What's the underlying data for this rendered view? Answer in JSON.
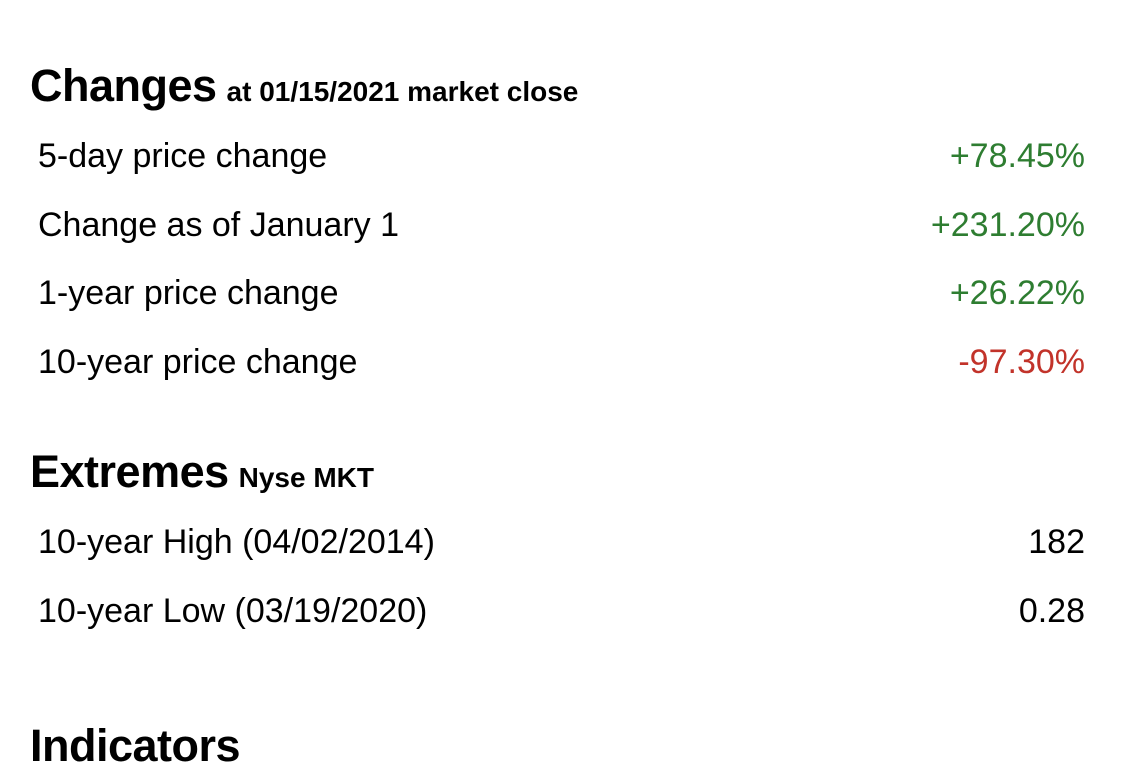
{
  "colors": {
    "positive": "#2e7d31",
    "negative": "#c2332a",
    "text": "#000000",
    "background": "#ffffff"
  },
  "sections": [
    {
      "title": "Changes",
      "subtitle": "at 01/15/2021 market close",
      "rows": [
        {
          "label": "5-day price change",
          "value": "+78.45%",
          "trend": "up"
        },
        {
          "label": "Change as of January 1",
          "value": "+231.20%",
          "trend": "up"
        },
        {
          "label": "1-year price change",
          "value": "+26.22%",
          "trend": "up"
        },
        {
          "label": "10-year price change",
          "value": "-97.30%",
          "trend": "down"
        }
      ]
    },
    {
      "title": "Extremes",
      "subtitle": "Nyse MKT",
      "rows": [
        {
          "label": "10-year High (04/02/2014)",
          "value": "182",
          "trend": "neutral"
        },
        {
          "label": "10-year Low (03/19/2020)",
          "value": "0.28",
          "trend": "neutral"
        }
      ]
    },
    {
      "title": "Indicators",
      "subtitle": "",
      "rows": []
    }
  ]
}
